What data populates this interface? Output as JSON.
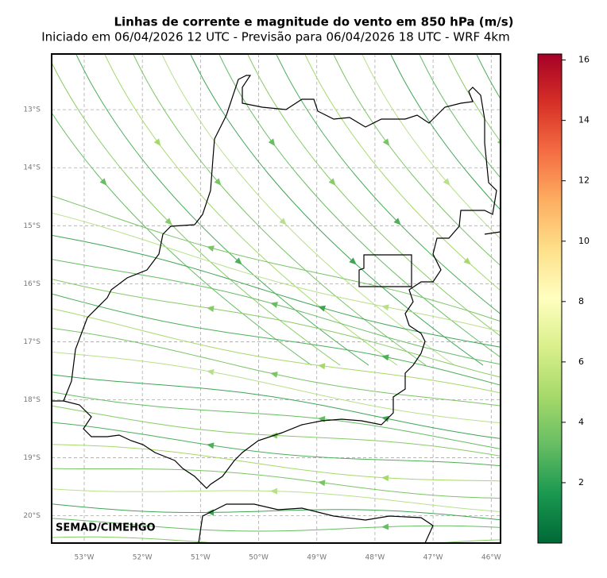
{
  "map": {
    "title": "Linhas de corrente e magnitude do vento em 850 hPa (m/s)",
    "subtitle": "Iniciado em 06/04/2026 12 UTC - Previsão para 06/04/2026 18 UTC - WRF 4km",
    "credit": "SEMAD/CIMEHGO",
    "lonlim": [
      -53.56,
      -45.84
    ],
    "latlim": [
      -12.04,
      -20.47
    ],
    "lon_ticks": [
      {
        "value": -53,
        "label": "53°W"
      },
      {
        "value": -52,
        "label": "52°W"
      },
      {
        "value": -51,
        "label": "51°W"
      },
      {
        "value": -50,
        "label": "50°W"
      },
      {
        "value": -49,
        "label": "49°W"
      },
      {
        "value": -48,
        "label": "48°W"
      },
      {
        "value": -47,
        "label": "47°W"
      },
      {
        "value": -46,
        "label": "46°W"
      }
    ],
    "lat_ticks": [
      {
        "value": -13,
        "label": "13°S"
      },
      {
        "value": -14,
        "label": "14°S"
      },
      {
        "value": -15,
        "label": "15°S"
      },
      {
        "value": -16,
        "label": "16°S"
      },
      {
        "value": -17,
        "label": "17°S"
      },
      {
        "value": -18,
        "label": "18°S"
      },
      {
        "value": -19,
        "label": "19°S"
      },
      {
        "value": -20,
        "label": "20°S"
      }
    ],
    "grid": true,
    "colorbar": {
      "lim": [
        0,
        16.2
      ],
      "ticks": [
        2,
        4,
        6,
        8,
        10,
        12,
        14,
        16
      ],
      "colors": [
        "#006837",
        "#1a9850",
        "#66bd63",
        "#a6d96a",
        "#d9ef8b",
        "#ffffbf",
        "#fee08b",
        "#fdae61",
        "#f46d43",
        "#d73027",
        "#a50026"
      ]
    }
  }
}
